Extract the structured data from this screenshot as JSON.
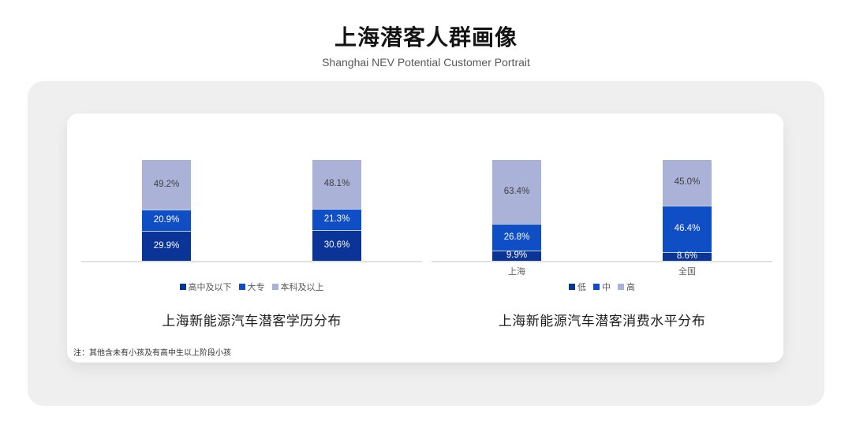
{
  "header": {
    "title": "上海潜客人群画像",
    "subtitle": "Shanghai NEV Potential Customer Portrait"
  },
  "footnote": "注：其他含未有小孩及有高中生以上阶段小孩",
  "theme": {
    "panel_bg": "#EFEFEF",
    "card_bg": "#FFFFFF",
    "axis_color": "#E1E1E1",
    "legend_text_color": "#595959",
    "category_text_color": "#666666",
    "chart_title_color": "#1F1F1F",
    "navy": "#0B3498",
    "royal": "#104EC6",
    "lavender": "#ABB2D8"
  },
  "chart_data": [
    {
      "type": "bar",
      "stacked": true,
      "title": "上海新能源汽车潜客学历分布",
      "categories": [
        "",
        ""
      ],
      "series": [
        {
          "name": "高中及以下",
          "values": [
            29.9,
            30.6
          ],
          "color": "#0B3498",
          "label_color": "#FFFFFF"
        },
        {
          "name": "大专",
          "values": [
            20.9,
            21.3
          ],
          "color": "#104EC6",
          "label_color": "#FFFFFF"
        },
        {
          "name": "本科及以上",
          "values": [
            49.2,
            48.1
          ],
          "color": "#ABB2D8",
          "label_color": "#404040"
        }
      ],
      "value_suffix": "%",
      "ylim": [
        0,
        100
      ],
      "legend_position": "bottom",
      "grid": false
    },
    {
      "type": "bar",
      "stacked": true,
      "title": "上海新能源汽车潜客消费水平分布",
      "categories": [
        "上海",
        "全国"
      ],
      "series": [
        {
          "name": "低",
          "values": [
            9.9,
            8.6
          ],
          "color": "#0B3498",
          "label_color": "#FFFFFF"
        },
        {
          "name": "中",
          "values": [
            26.8,
            46.4
          ],
          "color": "#104EC6",
          "label_color": "#FFFFFF"
        },
        {
          "name": "高",
          "values": [
            63.4,
            45.0
          ],
          "color": "#ABB2D8",
          "label_color": "#404040"
        }
      ],
      "value_suffix": "%",
      "ylim": [
        0,
        100
      ],
      "legend_position": "bottom",
      "grid": false
    }
  ]
}
